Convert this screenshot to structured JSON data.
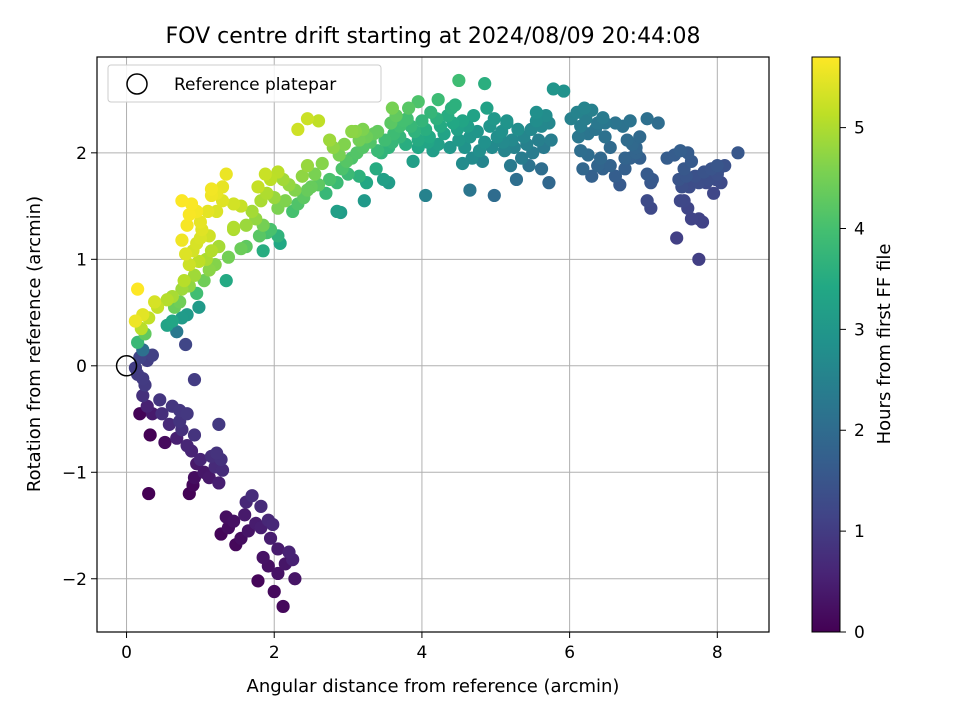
{
  "chart_data": {
    "type": "scatter",
    "title": "FOV centre drift starting at 2024/08/09 20:44:08",
    "xlabel": "Angular distance from reference (arcmin)",
    "ylabel": "Rotation from reference (arcmin)",
    "xlim": [
      -0.4,
      8.7
    ],
    "ylim": [
      -2.5,
      2.9
    ],
    "xticks": [
      0,
      2,
      4,
      6,
      8
    ],
    "yticks": [
      -2,
      -1,
      0,
      1,
      2
    ],
    "grid": true,
    "legend": {
      "location": "upper left",
      "entries": [
        "Reference platepar"
      ]
    },
    "colorbar": {
      "label": "Hours from first FF file",
      "range": [
        0,
        5.7
      ],
      "ticks": [
        0,
        1,
        2,
        3,
        4,
        5
      ],
      "colormap": "viridis"
    },
    "reference_point": {
      "x": 0,
      "y": 0,
      "label": "Reference platepar"
    },
    "points": [
      [
        2.12,
        -2.26
      ],
      [
        2.0,
        -2.12
      ],
      [
        2.28,
        -2.0
      ],
      [
        1.78,
        -2.02
      ],
      [
        2.05,
        -1.95
      ],
      [
        1.92,
        -1.88
      ],
      [
        2.15,
        -1.86
      ],
      [
        2.25,
        -1.82
      ],
      [
        1.85,
        -1.8
      ],
      [
        2.2,
        -1.75
      ],
      [
        2.05,
        -1.72
      ],
      [
        1.95,
        -1.62
      ],
      [
        1.55,
        -1.62
      ],
      [
        1.48,
        -1.68
      ],
      [
        1.28,
        -1.58
      ],
      [
        1.38,
        -1.52
      ],
      [
        1.65,
        -1.55
      ],
      [
        1.82,
        -1.52
      ],
      [
        1.98,
        -1.49
      ],
      [
        1.75,
        -1.48
      ],
      [
        1.45,
        -1.46
      ],
      [
        1.35,
        -1.42
      ],
      [
        1.92,
        -1.45
      ],
      [
        1.6,
        -1.4
      ],
      [
        1.62,
        -1.28
      ],
      [
        1.82,
        -1.32
      ],
      [
        1.7,
        -1.22
      ],
      [
        1.25,
        -1.1
      ],
      [
        1.12,
        -1.05
      ],
      [
        1.05,
        -1.0
      ],
      [
        1.3,
        -0.98
      ],
      [
        1.2,
        -0.95
      ],
      [
        0.92,
        -1.05
      ],
      [
        0.95,
        -0.92
      ],
      [
        1.0,
        -0.88
      ],
      [
        0.88,
        -0.8
      ],
      [
        1.15,
        -0.85
      ],
      [
        1.22,
        -0.82
      ],
      [
        1.28,
        -0.88
      ],
      [
        0.85,
        -1.2
      ],
      [
        0.9,
        -1.12
      ],
      [
        1.25,
        -0.55
      ],
      [
        0.68,
        -0.68
      ],
      [
        0.58,
        -0.55
      ],
      [
        0.72,
        -0.52
      ],
      [
        0.52,
        -0.72
      ],
      [
        0.75,
        -0.6
      ],
      [
        0.82,
        -0.45
      ],
      [
        0.72,
        -0.42
      ],
      [
        0.62,
        -0.38
      ],
      [
        0.48,
        -0.45
      ],
      [
        0.92,
        -0.65
      ],
      [
        0.82,
        -0.75
      ],
      [
        0.35,
        -0.45
      ],
      [
        0.28,
        -0.38
      ],
      [
        0.45,
        -0.32
      ],
      [
        0.22,
        -0.28
      ],
      [
        0.18,
        -0.45
      ],
      [
        0.32,
        -0.65
      ],
      [
        0.25,
        -0.18
      ],
      [
        0.15,
        -0.08
      ],
      [
        0.22,
        -0.12
      ],
      [
        0.12,
        -0.02
      ],
      [
        0.3,
        -1.2
      ],
      [
        0.92,
        -0.13
      ],
      [
        0.18,
        0.08
      ],
      [
        0.22,
        0.15
      ],
      [
        0.28,
        0.05
      ],
      [
        0.35,
        0.1
      ],
      [
        0.15,
        0.22
      ],
      [
        0.25,
        0.3
      ],
      [
        0.2,
        0.35
      ],
      [
        0.12,
        0.42
      ],
      [
        0.3,
        0.45
      ],
      [
        0.42,
        0.55
      ],
      [
        0.38,
        0.6
      ],
      [
        0.22,
        0.48
      ],
      [
        0.15,
        0.72
      ],
      [
        0.55,
        0.38
      ],
      [
        0.62,
        0.42
      ],
      [
        0.68,
        0.32
      ],
      [
        0.75,
        0.45
      ],
      [
        0.65,
        0.55
      ],
      [
        0.82,
        0.48
      ],
      [
        0.55,
        0.62
      ],
      [
        0.72,
        0.6
      ],
      [
        0.62,
        0.65
      ],
      [
        0.8,
        0.2
      ],
      [
        0.98,
        0.55
      ],
      [
        0.75,
        0.72
      ],
      [
        0.78,
        0.8
      ],
      [
        0.85,
        0.75
      ],
      [
        0.92,
        0.85
      ],
      [
        0.95,
        0.68
      ],
      [
        1.05,
        0.8
      ],
      [
        1.12,
        0.9
      ],
      [
        0.85,
        0.95
      ],
      [
        0.98,
        0.98
      ],
      [
        1.08,
        1.0
      ],
      [
        1.15,
        1.08
      ],
      [
        0.9,
        1.08
      ],
      [
        0.95,
        1.15
      ],
      [
        1.2,
        0.95
      ],
      [
        1.35,
        0.8
      ],
      [
        0.8,
        1.05
      ],
      [
        0.75,
        1.18
      ],
      [
        1.0,
        1.2
      ],
      [
        1.12,
        1.22
      ],
      [
        1.25,
        1.12
      ],
      [
        1.38,
        1.02
      ],
      [
        1.45,
        1.28
      ],
      [
        1.55,
        1.1
      ],
      [
        1.62,
        1.12
      ],
      [
        1.85,
        1.08
      ],
      [
        1.02,
        1.28
      ],
      [
        0.82,
        1.32
      ],
      [
        1.0,
        1.35
      ],
      [
        0.95,
        1.45
      ],
      [
        1.1,
        1.45
      ],
      [
        1.22,
        1.45
      ],
      [
        0.85,
        1.42
      ],
      [
        0.75,
        1.55
      ],
      [
        0.88,
        1.52
      ],
      [
        1.3,
        1.55
      ],
      [
        1.45,
        1.52
      ],
      [
        1.15,
        1.6
      ],
      [
        1.22,
        1.62
      ],
      [
        1.3,
        1.68
      ],
      [
        1.15,
        1.66
      ],
      [
        1.35,
        1.8
      ],
      [
        1.55,
        1.5
      ],
      [
        1.45,
        1.3
      ],
      [
        1.62,
        1.32
      ],
      [
        1.7,
        1.45
      ],
      [
        1.75,
        1.38
      ],
      [
        1.85,
        1.32
      ],
      [
        1.9,
        1.25
      ],
      [
        1.95,
        1.28
      ],
      [
        1.8,
        1.22
      ],
      [
        2.05,
        1.22
      ],
      [
        2.08,
        1.15
      ],
      [
        1.82,
        1.55
      ],
      [
        1.9,
        1.62
      ],
      [
        1.78,
        1.68
      ],
      [
        2.0,
        1.58
      ],
      [
        2.05,
        1.48
      ],
      [
        2.15,
        1.55
      ],
      [
        2.25,
        1.45
      ],
      [
        2.32,
        1.52
      ],
      [
        2.4,
        1.58
      ],
      [
        2.45,
        1.65
      ],
      [
        1.95,
        1.75
      ],
      [
        2.05,
        1.82
      ],
      [
        1.88,
        1.8
      ],
      [
        2.12,
        1.75
      ],
      [
        2.2,
        1.7
      ],
      [
        2.28,
        1.65
      ],
      [
        2.38,
        1.78
      ],
      [
        2.5,
        1.68
      ],
      [
        2.6,
        1.7
      ],
      [
        2.7,
        1.62
      ],
      [
        2.75,
        1.75
      ],
      [
        2.55,
        1.8
      ],
      [
        2.45,
        1.88
      ],
      [
        2.65,
        1.9
      ],
      [
        2.85,
        1.72
      ],
      [
        2.92,
        1.85
      ],
      [
        2.98,
        1.92
      ],
      [
        2.88,
        1.98
      ],
      [
        3.05,
        1.95
      ],
      [
        3.12,
        2.0
      ],
      [
        2.8,
        2.05
      ],
      [
        2.95,
        2.08
      ],
      [
        2.75,
        2.12
      ],
      [
        3.15,
        1.78
      ],
      [
        3.25,
        1.72
      ],
      [
        3.0,
        1.8
      ],
      [
        2.85,
        1.45
      ],
      [
        2.9,
        1.44
      ],
      [
        3.2,
        2.05
      ],
      [
        3.3,
        2.1
      ],
      [
        3.4,
        2.02
      ],
      [
        3.15,
        2.12
      ],
      [
        3.25,
        2.15
      ],
      [
        3.05,
        2.2
      ],
      [
        3.35,
        2.18
      ],
      [
        3.2,
        2.22
      ],
      [
        3.4,
        2.2
      ],
      [
        3.5,
        2.12
      ],
      [
        3.55,
        2.05
      ],
      [
        3.45,
        2.0
      ],
      [
        3.38,
        1.85
      ],
      [
        3.48,
        1.75
      ],
      [
        3.55,
        1.72
      ],
      [
        3.22,
        1.55
      ],
      [
        3.62,
        2.18
      ],
      [
        3.7,
        2.25
      ],
      [
        3.58,
        2.28
      ],
      [
        3.75,
        2.3
      ],
      [
        3.65,
        2.35
      ],
      [
        3.8,
        2.32
      ],
      [
        3.85,
        2.25
      ],
      [
        3.7,
        2.15
      ],
      [
        3.78,
        2.08
      ],
      [
        3.9,
        2.2
      ],
      [
        3.95,
        2.12
      ],
      [
        3.82,
        2.42
      ],
      [
        3.6,
        2.42
      ],
      [
        4.0,
        2.3
      ],
      [
        4.05,
        2.22
      ],
      [
        4.1,
        2.15
      ],
      [
        3.95,
        2.05
      ],
      [
        4.12,
        2.38
      ],
      [
        4.2,
        2.32
      ],
      [
        4.25,
        2.25
      ],
      [
        4.3,
        2.18
      ],
      [
        4.22,
        2.08
      ],
      [
        4.38,
        2.05
      ],
      [
        4.15,
        2.02
      ],
      [
        4.08,
        2.1
      ],
      [
        3.88,
        1.92
      ],
      [
        4.05,
        1.6
      ],
      [
        4.35,
        2.35
      ],
      [
        4.42,
        2.28
      ],
      [
        4.48,
        2.22
      ],
      [
        4.55,
        2.3
      ],
      [
        4.62,
        2.25
      ],
      [
        4.5,
        2.12
      ],
      [
        4.58,
        2.05
      ],
      [
        4.65,
        2.15
      ],
      [
        4.7,
        2.35
      ],
      [
        4.75,
        2.2
      ],
      [
        4.4,
        2.42
      ],
      [
        4.45,
        2.45
      ],
      [
        4.68,
        1.95
      ],
      [
        4.78,
        2.02
      ],
      [
        4.85,
        2.1
      ],
      [
        4.82,
        1.92
      ],
      [
        4.92,
        2.25
      ],
      [
        4.98,
        2.32
      ],
      [
        5.02,
        2.15
      ],
      [
        4.95,
        2.05
      ],
      [
        4.88,
        2.42
      ],
      [
        4.55,
        1.9
      ],
      [
        4.65,
        1.65
      ],
      [
        4.98,
        1.6
      ],
      [
        5.08,
        2.2
      ],
      [
        5.15,
        2.28
      ],
      [
        5.22,
        2.12
      ],
      [
        5.12,
        2.02
      ],
      [
        5.25,
        2.05
      ],
      [
        5.3,
        2.22
      ],
      [
        5.38,
        2.15
      ],
      [
        5.42,
        2.08
      ],
      [
        5.35,
        1.95
      ],
      [
        5.2,
        1.88
      ],
      [
        5.28,
        1.75
      ],
      [
        5.45,
        1.88
      ],
      [
        5.48,
        2.22
      ],
      [
        5.55,
        2.3
      ],
      [
        5.62,
        2.25
      ],
      [
        5.68,
        2.35
      ],
      [
        5.72,
        2.28
      ],
      [
        5.58,
        2.12
      ],
      [
        5.65,
        2.05
      ],
      [
        5.75,
        2.12
      ],
      [
        5.5,
        2.0
      ],
      [
        5.62,
        1.85
      ],
      [
        5.72,
        1.72
      ],
      [
        5.55,
        2.38
      ],
      [
        5.78,
        2.6
      ],
      [
        5.92,
        2.58
      ],
      [
        5.15,
        2.3
      ],
      [
        5.1,
        2.1
      ],
      [
        3.95,
        2.48
      ],
      [
        4.22,
        2.5
      ],
      [
        4.5,
        2.68
      ],
      [
        4.85,
        2.65
      ],
      [
        2.32,
        2.22
      ],
      [
        2.6,
        2.3
      ],
      [
        2.45,
        2.32
      ],
      [
        3.1,
        2.2
      ],
      [
        3.6,
        2.1
      ],
      [
        6.02,
        2.32
      ],
      [
        6.1,
        2.38
      ],
      [
        6.15,
        2.25
      ],
      [
        6.22,
        2.32
      ],
      [
        6.3,
        2.4
      ],
      [
        6.38,
        2.28
      ],
      [
        6.45,
        2.33
      ],
      [
        6.2,
        2.42
      ],
      [
        6.12,
        2.15
      ],
      [
        6.25,
        2.18
      ],
      [
        6.35,
        2.22
      ],
      [
        6.48,
        2.28
      ],
      [
        6.15,
        2.02
      ],
      [
        6.25,
        1.98
      ],
      [
        6.18,
        1.85
      ],
      [
        6.3,
        1.78
      ],
      [
        6.38,
        1.88
      ],
      [
        6.45,
        1.85
      ],
      [
        6.55,
        1.88
      ],
      [
        6.62,
        1.78
      ],
      [
        6.68,
        1.7
      ],
      [
        6.48,
        2.15
      ],
      [
        6.55,
        2.05
      ],
      [
        6.42,
        1.95
      ],
      [
        6.75,
        1.85
      ],
      [
        6.82,
        1.95
      ],
      [
        6.9,
        2.0
      ],
      [
        6.85,
        2.08
      ],
      [
        6.78,
        2.12
      ],
      [
        6.95,
        1.95
      ],
      [
        6.75,
        1.95
      ],
      [
        6.72,
        2.25
      ],
      [
        6.82,
        2.3
      ],
      [
        6.62,
        2.28
      ],
      [
        6.95,
        2.15
      ],
      [
        7.05,
        2.32
      ],
      [
        7.2,
        2.28
      ],
      [
        7.05,
        1.8
      ],
      [
        7.12,
        1.75
      ],
      [
        7.1,
        1.72
      ],
      [
        7.05,
        1.55
      ],
      [
        7.1,
        1.48
      ],
      [
        6.9,
        2.05
      ],
      [
        7.32,
        1.95
      ],
      [
        7.42,
        1.98
      ],
      [
        7.5,
        2.02
      ],
      [
        7.55,
        1.85
      ],
      [
        7.48,
        1.75
      ],
      [
        7.52,
        1.68
      ],
      [
        7.6,
        2.0
      ],
      [
        7.65,
        1.92
      ],
      [
        7.58,
        1.78
      ],
      [
        7.62,
        1.68
      ],
      [
        7.55,
        1.55
      ],
      [
        7.6,
        1.48
      ],
      [
        7.5,
        1.55
      ],
      [
        7.65,
        1.38
      ],
      [
        7.75,
        1.38
      ],
      [
        7.8,
        1.35
      ],
      [
        7.45,
        1.2
      ],
      [
        7.75,
        1.0
      ],
      [
        7.7,
        1.78
      ],
      [
        7.75,
        1.72
      ],
      [
        7.82,
        1.82
      ],
      [
        7.88,
        1.75
      ],
      [
        7.92,
        1.85
      ],
      [
        7.98,
        1.75
      ],
      [
        8.02,
        1.85
      ],
      [
        7.85,
        1.72
      ],
      [
        8.0,
        1.8
      ],
      [
        8.05,
        1.72
      ],
      [
        7.95,
        1.62
      ],
      [
        8.1,
        1.88
      ],
      [
        8.28,
        2.0
      ],
      [
        8.0,
        1.88
      ]
    ]
  }
}
